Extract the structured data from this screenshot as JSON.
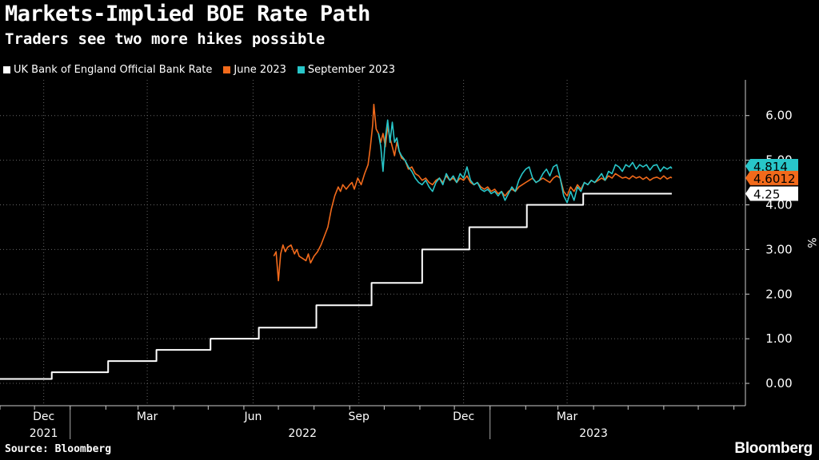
{
  "header": {
    "title": "Markets-Implied BOE Rate Path",
    "subtitle": "Traders see two more hikes possible"
  },
  "footer": {
    "source": "Source: Bloomberg",
    "brand": "Bloomberg"
  },
  "colors": {
    "background": "#000000",
    "bank_rate": "#ffffff",
    "june_2023": "#f26a1b",
    "september_2023": "#28c6c9",
    "grid": "#666666"
  },
  "chart_data": {
    "type": "line",
    "title": "Markets-Implied BOE Rate Path",
    "subtitle": "Traders see two more hikes possible",
    "xlabel": "",
    "ylabel": "%",
    "ylim": [
      -0.5,
      6.8
    ],
    "xlim": [
      0,
      648
    ],
    "x_unit": "days since 2021-11-01",
    "y_axis_side": "right",
    "grid": true,
    "legend_position": "top-left",
    "y_ticks": [
      {
        "value": 0,
        "label": "0.00"
      },
      {
        "value": 1,
        "label": "1.00"
      },
      {
        "value": 2,
        "label": "2.00"
      },
      {
        "value": 3,
        "label": "3.00"
      },
      {
        "value": 4,
        "label": "4.00"
      },
      {
        "value": 5,
        "label": "5.00"
      },
      {
        "value": 6,
        "label": "6.00"
      }
    ],
    "x_month_ticks": [
      {
        "x": 38,
        "label": "Dec"
      },
      {
        "x": 128,
        "label": "Mar"
      },
      {
        "x": 220,
        "label": "Jun"
      },
      {
        "x": 312,
        "label": "Sep"
      },
      {
        "x": 403,
        "label": "Dec"
      },
      {
        "x": 493,
        "label": "Mar"
      }
    ],
    "x_year_labels": [
      {
        "x": 15,
        "label": "2021"
      },
      {
        "x": 240,
        "label": "2022"
      },
      {
        "x": 493,
        "label": "2023"
      }
    ],
    "x_minor_ticks": [
      0,
      30,
      61,
      92,
      120,
      151,
      181,
      212,
      242,
      273,
      304,
      334,
      365,
      395,
      426,
      457,
      485,
      516,
      546,
      577,
      607,
      638
    ],
    "year_dividers": [
      61,
      426
    ],
    "series": [
      {
        "name": "UK Bank of England Official Bank Rate",
        "color": "#ffffff",
        "step": true,
        "last_label": "4.25",
        "points": [
          [
            0,
            0.1
          ],
          [
            45,
            0.25
          ],
          [
            94,
            0.5
          ],
          [
            136,
            0.75
          ],
          [
            183,
            1.0
          ],
          [
            225,
            1.25
          ],
          [
            275,
            1.75
          ],
          [
            323,
            2.25
          ],
          [
            367,
            3.0
          ],
          [
            408,
            3.5
          ],
          [
            458,
            4.0
          ],
          [
            507,
            4.25
          ],
          [
            584,
            4.25
          ]
        ]
      },
      {
        "name": "June 2023",
        "color": "#f26a1b",
        "last_label": "4.6012",
        "points": [
          [
            238,
            2.85
          ],
          [
            240,
            2.95
          ],
          [
            242,
            2.3
          ],
          [
            244,
            2.9
          ],
          [
            246,
            3.1
          ],
          [
            248,
            2.95
          ],
          [
            250,
            3.05
          ],
          [
            253,
            3.1
          ],
          [
            256,
            2.9
          ],
          [
            258,
            3.0
          ],
          [
            260,
            2.85
          ],
          [
            263,
            2.8
          ],
          [
            266,
            2.75
          ],
          [
            268,
            2.9
          ],
          [
            270,
            2.7
          ],
          [
            273,
            2.85
          ],
          [
            276,
            2.95
          ],
          [
            279,
            3.1
          ],
          [
            282,
            3.3
          ],
          [
            285,
            3.5
          ],
          [
            288,
            3.9
          ],
          [
            291,
            4.2
          ],
          [
            294,
            4.4
          ],
          [
            296,
            4.3
          ],
          [
            298,
            4.45
          ],
          [
            301,
            4.35
          ],
          [
            304,
            4.45
          ],
          [
            306,
            4.5
          ],
          [
            308,
            4.35
          ],
          [
            311,
            4.6
          ],
          [
            314,
            4.45
          ],
          [
            317,
            4.7
          ],
          [
            320,
            4.9
          ],
          [
            322,
            5.3
          ],
          [
            324,
            5.8
          ],
          [
            325,
            6.25
          ],
          [
            327,
            5.7
          ],
          [
            329,
            5.6
          ],
          [
            331,
            5.4
          ],
          [
            333,
            5.6
          ],
          [
            335,
            5.3
          ],
          [
            337,
            5.75
          ],
          [
            339,
            5.5
          ],
          [
            341,
            5.3
          ],
          [
            343,
            5.1
          ],
          [
            345,
            5.4
          ],
          [
            347,
            5.2
          ],
          [
            349,
            5.05
          ],
          [
            352,
            5.0
          ],
          [
            355,
            4.8
          ],
          [
            358,
            4.85
          ],
          [
            361,
            4.7
          ],
          [
            364,
            4.65
          ],
          [
            367,
            4.55
          ],
          [
            370,
            4.6
          ],
          [
            373,
            4.5
          ],
          [
            376,
            4.45
          ],
          [
            379,
            4.55
          ],
          [
            382,
            4.6
          ],
          [
            385,
            4.5
          ],
          [
            388,
            4.65
          ],
          [
            391,
            4.55
          ],
          [
            394,
            4.6
          ],
          [
            397,
            4.5
          ],
          [
            400,
            4.6
          ],
          [
            403,
            4.55
          ],
          [
            406,
            4.65
          ],
          [
            409,
            4.5
          ],
          [
            412,
            4.45
          ],
          [
            415,
            4.5
          ],
          [
            418,
            4.4
          ],
          [
            421,
            4.35
          ],
          [
            424,
            4.4
          ],
          [
            427,
            4.3
          ],
          [
            430,
            4.35
          ],
          [
            433,
            4.25
          ],
          [
            436,
            4.3
          ],
          [
            439,
            4.2
          ],
          [
            442,
            4.3
          ],
          [
            445,
            4.35
          ],
          [
            448,
            4.3
          ],
          [
            451,
            4.4
          ],
          [
            454,
            4.45
          ],
          [
            457,
            4.5
          ],
          [
            460,
            4.55
          ],
          [
            463,
            4.6
          ],
          [
            466,
            4.5
          ],
          [
            469,
            4.55
          ],
          [
            472,
            4.6
          ],
          [
            475,
            4.55
          ],
          [
            478,
            4.5
          ],
          [
            481,
            4.6
          ],
          [
            484,
            4.65
          ],
          [
            487,
            4.6
          ],
          [
            490,
            4.3
          ],
          [
            493,
            4.2
          ],
          [
            496,
            4.4
          ],
          [
            499,
            4.3
          ],
          [
            502,
            4.45
          ],
          [
            505,
            4.35
          ],
          [
            508,
            4.5
          ],
          [
            511,
            4.45
          ],
          [
            514,
            4.55
          ],
          [
            517,
            4.5
          ],
          [
            520,
            4.55
          ],
          [
            523,
            4.6
          ],
          [
            526,
            4.55
          ],
          [
            529,
            4.65
          ],
          [
            532,
            4.6
          ],
          [
            535,
            4.7
          ],
          [
            538,
            4.65
          ],
          [
            541,
            4.6
          ],
          [
            544,
            4.62
          ],
          [
            547,
            4.58
          ],
          [
            550,
            4.65
          ],
          [
            553,
            4.6
          ],
          [
            556,
            4.63
          ],
          [
            559,
            4.57
          ],
          [
            562,
            4.62
          ],
          [
            565,
            4.55
          ],
          [
            568,
            4.6
          ],
          [
            571,
            4.62
          ],
          [
            574,
            4.58
          ],
          [
            577,
            4.65
          ],
          [
            580,
            4.58
          ],
          [
            583,
            4.62
          ],
          [
            584,
            4.6012
          ]
        ]
      },
      {
        "name": "September 2023",
        "color": "#28c6c9",
        "last_label": "4.814",
        "points": [
          [
            329,
            5.6
          ],
          [
            331,
            5.3
          ],
          [
            333,
            4.75
          ],
          [
            335,
            5.5
          ],
          [
            337,
            5.9
          ],
          [
            339,
            5.4
          ],
          [
            341,
            5.85
          ],
          [
            343,
            5.4
          ],
          [
            345,
            5.5
          ],
          [
            347,
            5.2
          ],
          [
            349,
            5.1
          ],
          [
            352,
            5.0
          ],
          [
            355,
            4.85
          ],
          [
            358,
            4.75
          ],
          [
            361,
            4.6
          ],
          [
            364,
            4.5
          ],
          [
            367,
            4.45
          ],
          [
            370,
            4.55
          ],
          [
            373,
            4.4
          ],
          [
            376,
            4.3
          ],
          [
            379,
            4.5
          ],
          [
            382,
            4.6
          ],
          [
            385,
            4.45
          ],
          [
            388,
            4.7
          ],
          [
            391,
            4.55
          ],
          [
            394,
            4.65
          ],
          [
            397,
            4.5
          ],
          [
            400,
            4.7
          ],
          [
            403,
            4.6
          ],
          [
            406,
            4.85
          ],
          [
            409,
            4.55
          ],
          [
            412,
            4.45
          ],
          [
            415,
            4.5
          ],
          [
            418,
            4.35
          ],
          [
            421,
            4.3
          ],
          [
            424,
            4.35
          ],
          [
            427,
            4.25
          ],
          [
            430,
            4.3
          ],
          [
            433,
            4.2
          ],
          [
            436,
            4.3
          ],
          [
            439,
            4.1
          ],
          [
            442,
            4.25
          ],
          [
            445,
            4.4
          ],
          [
            448,
            4.3
          ],
          [
            451,
            4.55
          ],
          [
            454,
            4.7
          ],
          [
            457,
            4.8
          ],
          [
            460,
            4.85
          ],
          [
            463,
            4.6
          ],
          [
            466,
            4.5
          ],
          [
            469,
            4.55
          ],
          [
            472,
            4.7
          ],
          [
            475,
            4.8
          ],
          [
            478,
            4.65
          ],
          [
            481,
            4.85
          ],
          [
            484,
            4.9
          ],
          [
            487,
            4.6
          ],
          [
            490,
            4.2
          ],
          [
            493,
            4.05
          ],
          [
            496,
            4.3
          ],
          [
            499,
            4.1
          ],
          [
            502,
            4.4
          ],
          [
            505,
            4.3
          ],
          [
            508,
            4.5
          ],
          [
            511,
            4.45
          ],
          [
            514,
            4.55
          ],
          [
            517,
            4.5
          ],
          [
            520,
            4.6
          ],
          [
            523,
            4.7
          ],
          [
            526,
            4.55
          ],
          [
            529,
            4.75
          ],
          [
            532,
            4.7
          ],
          [
            535,
            4.9
          ],
          [
            538,
            4.85
          ],
          [
            541,
            4.75
          ],
          [
            544,
            4.9
          ],
          [
            547,
            4.85
          ],
          [
            550,
            4.95
          ],
          [
            553,
            4.8
          ],
          [
            556,
            4.9
          ],
          [
            559,
            4.85
          ],
          [
            562,
            4.9
          ],
          [
            565,
            4.78
          ],
          [
            568,
            4.88
          ],
          [
            571,
            4.9
          ],
          [
            574,
            4.75
          ],
          [
            577,
            4.85
          ],
          [
            580,
            4.8
          ],
          [
            583,
            4.85
          ],
          [
            584,
            4.814
          ]
        ]
      }
    ]
  }
}
